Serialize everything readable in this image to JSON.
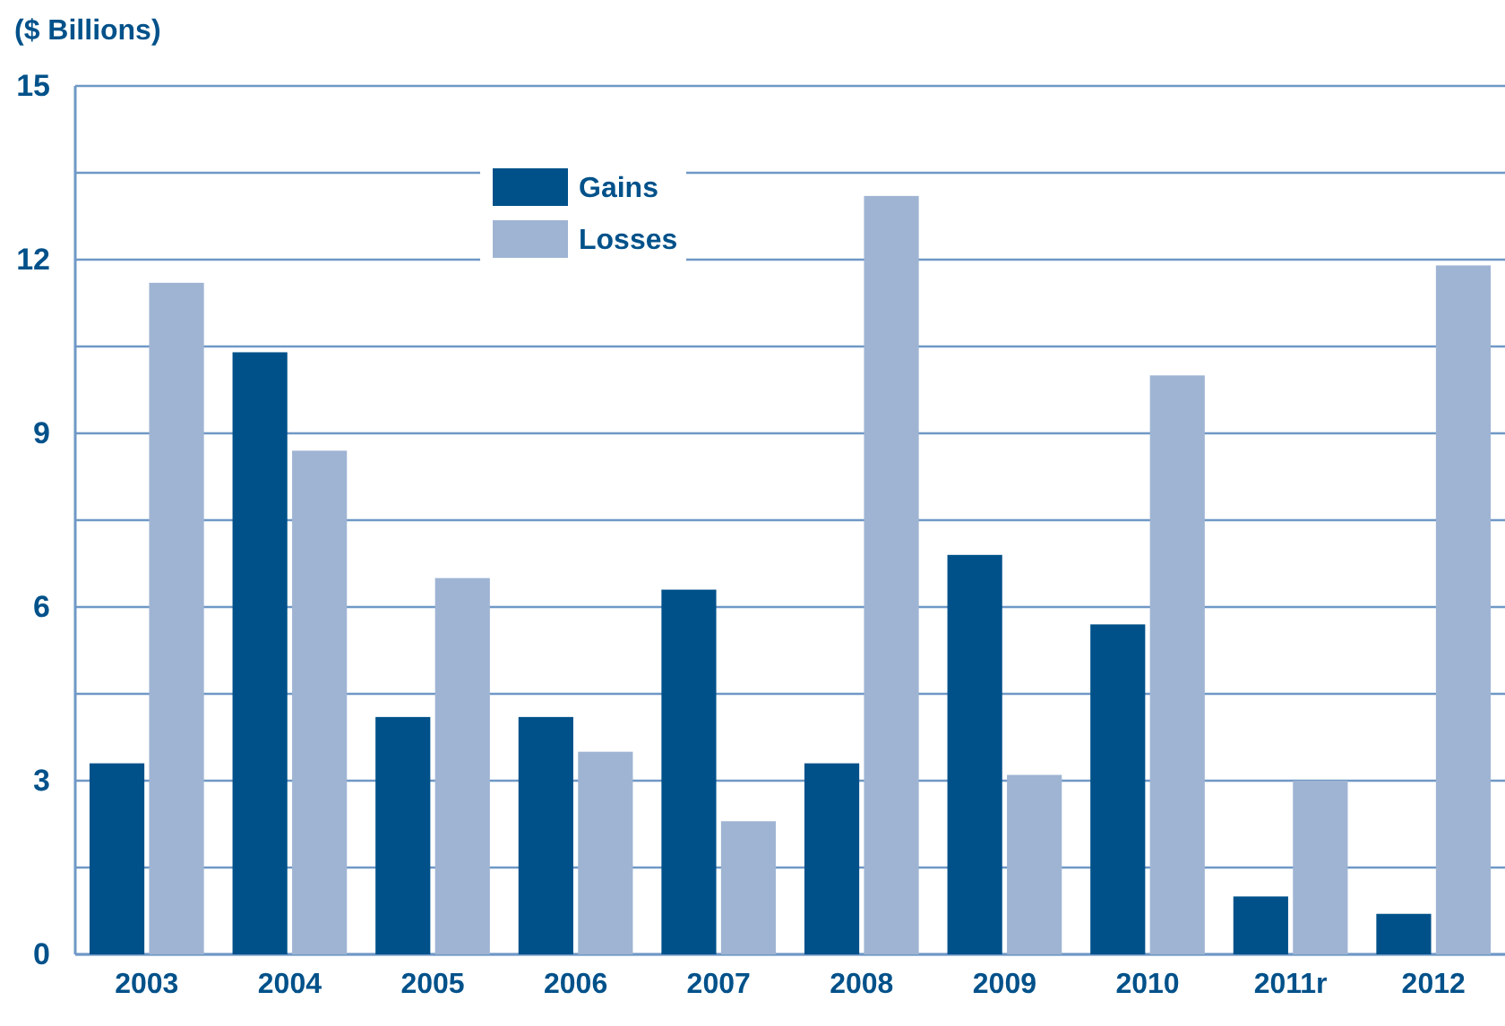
{
  "chart_data": {
    "type": "bar",
    "ylabel": "($ Billions)",
    "categories": [
      "2003",
      "2004",
      "2005",
      "2006",
      "2007",
      "2008",
      "2009",
      "2010",
      "2011r",
      "2012"
    ],
    "series": [
      {
        "name": "Gains",
        "color": "#00518a",
        "values": [
          3.3,
          10.4,
          4.1,
          4.1,
          6.3,
          3.3,
          6.9,
          5.7,
          1.0,
          0.7
        ]
      },
      {
        "name": "Losses",
        "color": "#9fb4d3",
        "values": [
          11.6,
          8.7,
          6.5,
          3.5,
          2.3,
          13.1,
          3.1,
          10.0,
          3.0,
          11.9
        ]
      }
    ],
    "ylim": [
      0,
      15
    ],
    "yticks": [
      0,
      {
        "value": 1.5,
        "label": null
      },
      3,
      {
        "value": 4.5,
        "label": null
      },
      6,
      {
        "value": 7.5,
        "label": null
      },
      9,
      {
        "value": 10.5,
        "label": null
      },
      12,
      {
        "value": 13.5,
        "label": null
      },
      15
    ],
    "grid": true,
    "legend": "top"
  }
}
